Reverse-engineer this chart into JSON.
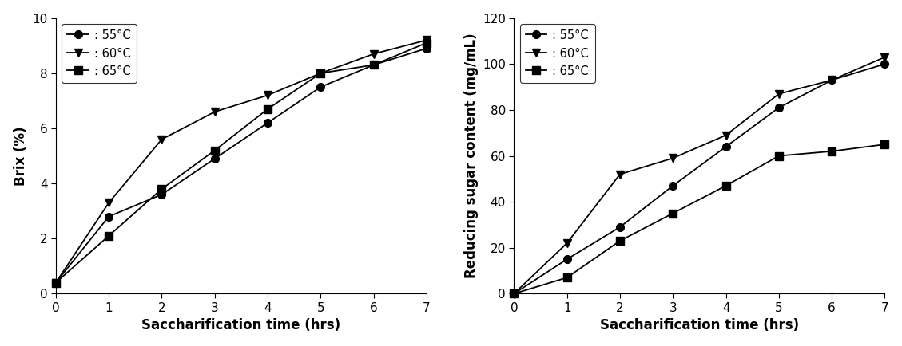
{
  "x": [
    0,
    1,
    2,
    3,
    4,
    5,
    6,
    7
  ],
  "left_55": [
    0.4,
    2.8,
    3.6,
    4.9,
    6.2,
    7.5,
    8.3,
    8.9
  ],
  "left_60": [
    0.4,
    3.3,
    5.6,
    6.6,
    7.2,
    8.0,
    8.7,
    9.2
  ],
  "left_65": [
    0.4,
    2.1,
    3.8,
    5.2,
    6.7,
    8.0,
    8.3,
    9.1
  ],
  "right_55": [
    0,
    15,
    29,
    47,
    64,
    81,
    93,
    100
  ],
  "right_60": [
    0,
    22,
    52,
    59,
    69,
    87,
    93,
    103
  ],
  "right_65": [
    0,
    7,
    23,
    35,
    47,
    60,
    62,
    65
  ],
  "left_ylabel": "Brix (%)",
  "right_ylabel": "Reducing sugar content (mg/mL)",
  "xlabel": "Saccharification time (hrs)",
  "left_ylim": [
    0,
    10
  ],
  "right_ylim": [
    0,
    120
  ],
  "left_yticks": [
    0,
    2,
    4,
    6,
    8,
    10
  ],
  "right_yticks": [
    0,
    20,
    40,
    60,
    80,
    100,
    120
  ],
  "xticks": [
    0,
    1,
    2,
    3,
    4,
    5,
    6,
    7
  ],
  "legend_55": ": 55°C",
  "legend_60": ": 60°C",
  "legend_65": ": 65°C",
  "color": "black",
  "markersize": 7,
  "linewidth": 1.3,
  "label_fontsize": 12,
  "tick_fontsize": 11,
  "legend_fontsize": 10.5
}
